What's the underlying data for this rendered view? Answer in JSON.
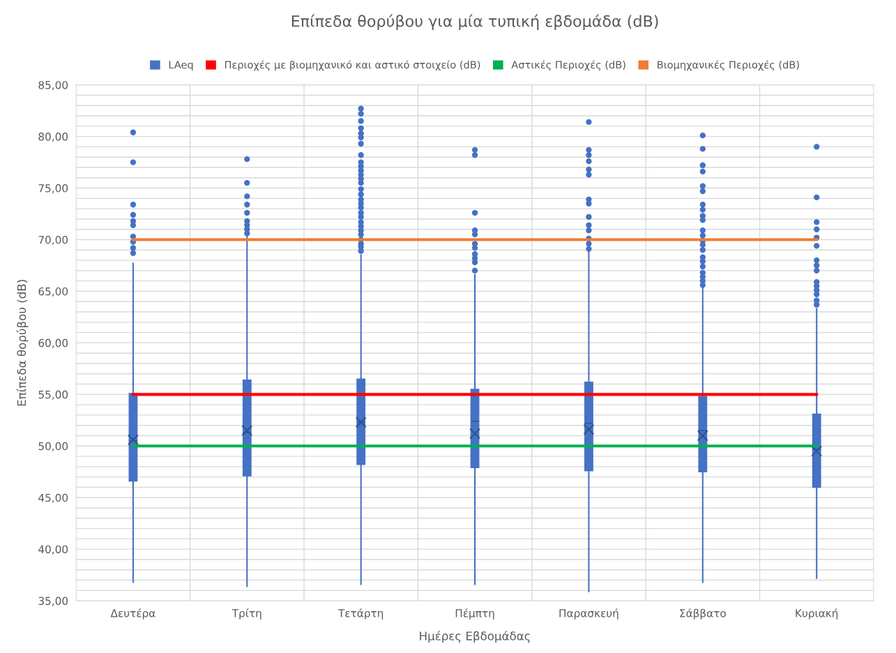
{
  "chart_data": {
    "type": "box",
    "title": "Επίπεδα θορύβου για μία τυπική εβδομάδα (dB)",
    "xlabel": "Ημέρες Εβδομάδας",
    "ylabel": "Επίπεδα θορύβου (dB)",
    "categories": [
      "Δευτέρα",
      "Τρίτη",
      "Τετάρτη",
      "Πέμπτη",
      "Παρασκευή",
      "Σάββατο",
      "Κυριακή"
    ],
    "ylim": [
      35,
      85
    ],
    "yticks": [
      {
        "value": 35,
        "label": "35,00"
      },
      {
        "value": 36,
        "label": null
      },
      {
        "value": 37,
        "label": null
      },
      {
        "value": 38,
        "label": null
      },
      {
        "value": 39,
        "label": null
      },
      {
        "value": 40,
        "label": "40,00"
      },
      {
        "value": 41,
        "label": null
      },
      {
        "value": 42,
        "label": null
      },
      {
        "value": 43,
        "label": null
      },
      {
        "value": 44,
        "label": null
      },
      {
        "value": 45,
        "label": "45,00"
      },
      {
        "value": 46,
        "label": null
      },
      {
        "value": 47,
        "label": null
      },
      {
        "value": 48,
        "label": null
      },
      {
        "value": 49,
        "label": null
      },
      {
        "value": 50,
        "label": "50,00"
      },
      {
        "value": 51,
        "label": null
      },
      {
        "value": 52,
        "label": null
      },
      {
        "value": 53,
        "label": null
      },
      {
        "value": 54,
        "label": null
      },
      {
        "value": 55,
        "label": "55,00"
      },
      {
        "value": 56,
        "label": null
      },
      {
        "value": 57,
        "label": null
      },
      {
        "value": 58,
        "label": null
      },
      {
        "value": 59,
        "label": null
      },
      {
        "value": 60,
        "label": "60,00"
      },
      {
        "value": 61,
        "label": null
      },
      {
        "value": 62,
        "label": null
      },
      {
        "value": 63,
        "label": null
      },
      {
        "value": 64,
        "label": null
      },
      {
        "value": 65,
        "label": "65,00"
      },
      {
        "value": 66,
        "label": null
      },
      {
        "value": 67,
        "label": null
      },
      {
        "value": 68,
        "label": null
      },
      {
        "value": 69,
        "label": null
      },
      {
        "value": 70,
        "label": "70,00"
      },
      {
        "value": 71,
        "label": null
      },
      {
        "value": 72,
        "label": null
      },
      {
        "value": 73,
        "label": null
      },
      {
        "value": 74,
        "label": null
      },
      {
        "value": 75,
        "label": "75,00"
      },
      {
        "value": 76,
        "label": null
      },
      {
        "value": 77,
        "label": null
      },
      {
        "value": 78,
        "label": null
      },
      {
        "value": 79,
        "label": null
      },
      {
        "value": 80,
        "label": "80,00"
      },
      {
        "value": 81,
        "label": null
      },
      {
        "value": 82,
        "label": null
      },
      {
        "value": 83,
        "label": null
      },
      {
        "value": 84,
        "label": null
      },
      {
        "value": 85,
        "label": "85,00"
      }
    ],
    "grid": true,
    "legend": "top",
    "series": [
      {
        "name": "LAeq",
        "color": "#4472c4",
        "boxes": [
          {
            "low": 36.8,
            "q1": 46.6,
            "median": 50.5,
            "q3": 55.1,
            "high": 67.7,
            "mean": 50.6,
            "outliers": [
              80.4,
              77.5,
              73.4,
              72.4,
              71.8,
              71.4,
              70.3,
              69.8,
              69.2,
              68.7
            ]
          },
          {
            "low": 36.4,
            "q1": 47.1,
            "median": 51.3,
            "q3": 56.4,
            "high": 70.3,
            "mean": 51.5,
            "outliers": [
              77.8,
              75.5,
              74.2,
              73.4,
              72.6,
              71.8,
              71.4,
              71.0,
              70.6
            ]
          },
          {
            "low": 36.6,
            "q1": 48.2,
            "median": 52.3,
            "q3": 56.5,
            "high": 68.5,
            "mean": 52.3,
            "outliers": [
              82.7,
              82.2,
              81.5,
              80.8,
              80.3,
              79.9,
              79.3,
              78.2,
              77.5,
              77.1,
              76.7,
              76.3,
              75.9,
              75.5,
              74.9,
              74.4,
              73.9,
              73.5,
              73.1,
              72.6,
              72.2,
              71.7,
              71.3,
              70.9,
              70.5,
              70.0,
              69.6,
              69.3,
              68.9
            ]
          },
          {
            "low": 36.6,
            "q1": 47.9,
            "median": 52.4,
            "q3": 55.5,
            "high": 66.6,
            "mean": 51.2,
            "outliers": [
              78.7,
              78.2,
              72.6,
              70.9,
              70.5,
              69.6,
              69.2,
              68.6,
              68.2,
              67.8,
              67.0
            ]
          },
          {
            "low": 35.9,
            "q1": 47.6,
            "median": 52.2,
            "q3": 56.2,
            "high": 68.9,
            "mean": 51.6,
            "outliers": [
              81.4,
              78.7,
              78.2,
              77.6,
              76.8,
              76.3,
              73.9,
              73.5,
              72.2,
              71.4,
              70.9,
              70.1,
              69.6,
              69.1
            ]
          },
          {
            "low": 36.8,
            "q1": 47.5,
            "median": 51.5,
            "q3": 54.8,
            "high": 65.4,
            "mean": 51.0,
            "outliers": [
              80.1,
              78.8,
              77.2,
              76.6,
              75.2,
              74.7,
              73.4,
              72.9,
              72.3,
              71.9,
              70.9,
              70.4,
              69.9,
              69.5,
              69.0,
              68.3,
              67.9,
              67.4,
              66.8,
              66.4,
              66.0,
              65.6
            ]
          },
          {
            "low": 37.2,
            "q1": 46.0,
            "median": 49.7,
            "q3": 53.1,
            "high": 63.3,
            "mean": 49.5,
            "outliers": [
              79.0,
              74.1,
              71.7,
              71.0,
              70.2,
              69.4,
              68.0,
              67.5,
              67.0,
              65.9,
              65.5,
              65.1,
              64.7,
              64.1,
              63.7
            ]
          }
        ]
      },
      {
        "name": "Περιοχές με βιομηχανικό και αστικό στοιχείο (dB)",
        "type": "line",
        "color": "#ff0000",
        "values": [
          55,
          55,
          55,
          55,
          55,
          55,
          55
        ]
      },
      {
        "name": "Αστικές Περιοχές (dB)",
        "type": "line",
        "color": "#00b050",
        "values": [
          50,
          50,
          50,
          50,
          50,
          50,
          50
        ]
      },
      {
        "name": "Βιομηχανικές Περιοχές (dB)",
        "type": "line",
        "color": "#ed7d31",
        "values": [
          70,
          70,
          70,
          70,
          70,
          70,
          70
        ]
      }
    ]
  }
}
